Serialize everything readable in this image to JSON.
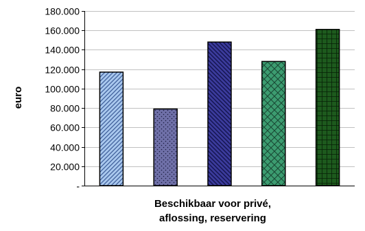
{
  "chart_data": {
    "type": "bar",
    "categories": [
      "",
      "",
      "",
      "",
      ""
    ],
    "values": [
      117000,
      79000,
      148000,
      128000,
      161000
    ],
    "xlabel_lines": [
      "Beschikbaar voor privé,",
      "aflossing, reservering"
    ],
    "ylabel": "euro",
    "ylim": [
      0,
      180000
    ],
    "yticks": [
      {
        "value": 0,
        "label": "-"
      },
      {
        "value": 20000,
        "label": "20.000"
      },
      {
        "value": 40000,
        "label": "40.000"
      },
      {
        "value": 60000,
        "label": "60.000"
      },
      {
        "value": 80000,
        "label": "80.000"
      },
      {
        "value": 100000,
        "label": "100.000"
      },
      {
        "value": 120000,
        "label": "120.000"
      },
      {
        "value": 140000,
        "label": "140.000"
      },
      {
        "value": 160000,
        "label": "160.000"
      },
      {
        "value": 180000,
        "label": "180.000"
      }
    ],
    "grid": true,
    "legend": "none",
    "bar_styles": [
      {
        "pattern": "diagonal-right",
        "fill": "#a9c8ee",
        "stroke": "#3f5f9a"
      },
      {
        "pattern": "dots",
        "fill": "#6f70a8",
        "stroke": "#2f2f55"
      },
      {
        "pattern": "diagonal-left",
        "fill": "#3b3b9c",
        "stroke": "#151550"
      },
      {
        "pattern": "diamond-grid",
        "fill": "#3c9c70",
        "stroke": "#1a4a35"
      },
      {
        "pattern": "square-grid",
        "fill": "#1d5a1d",
        "stroke": "#071f07"
      }
    ]
  }
}
